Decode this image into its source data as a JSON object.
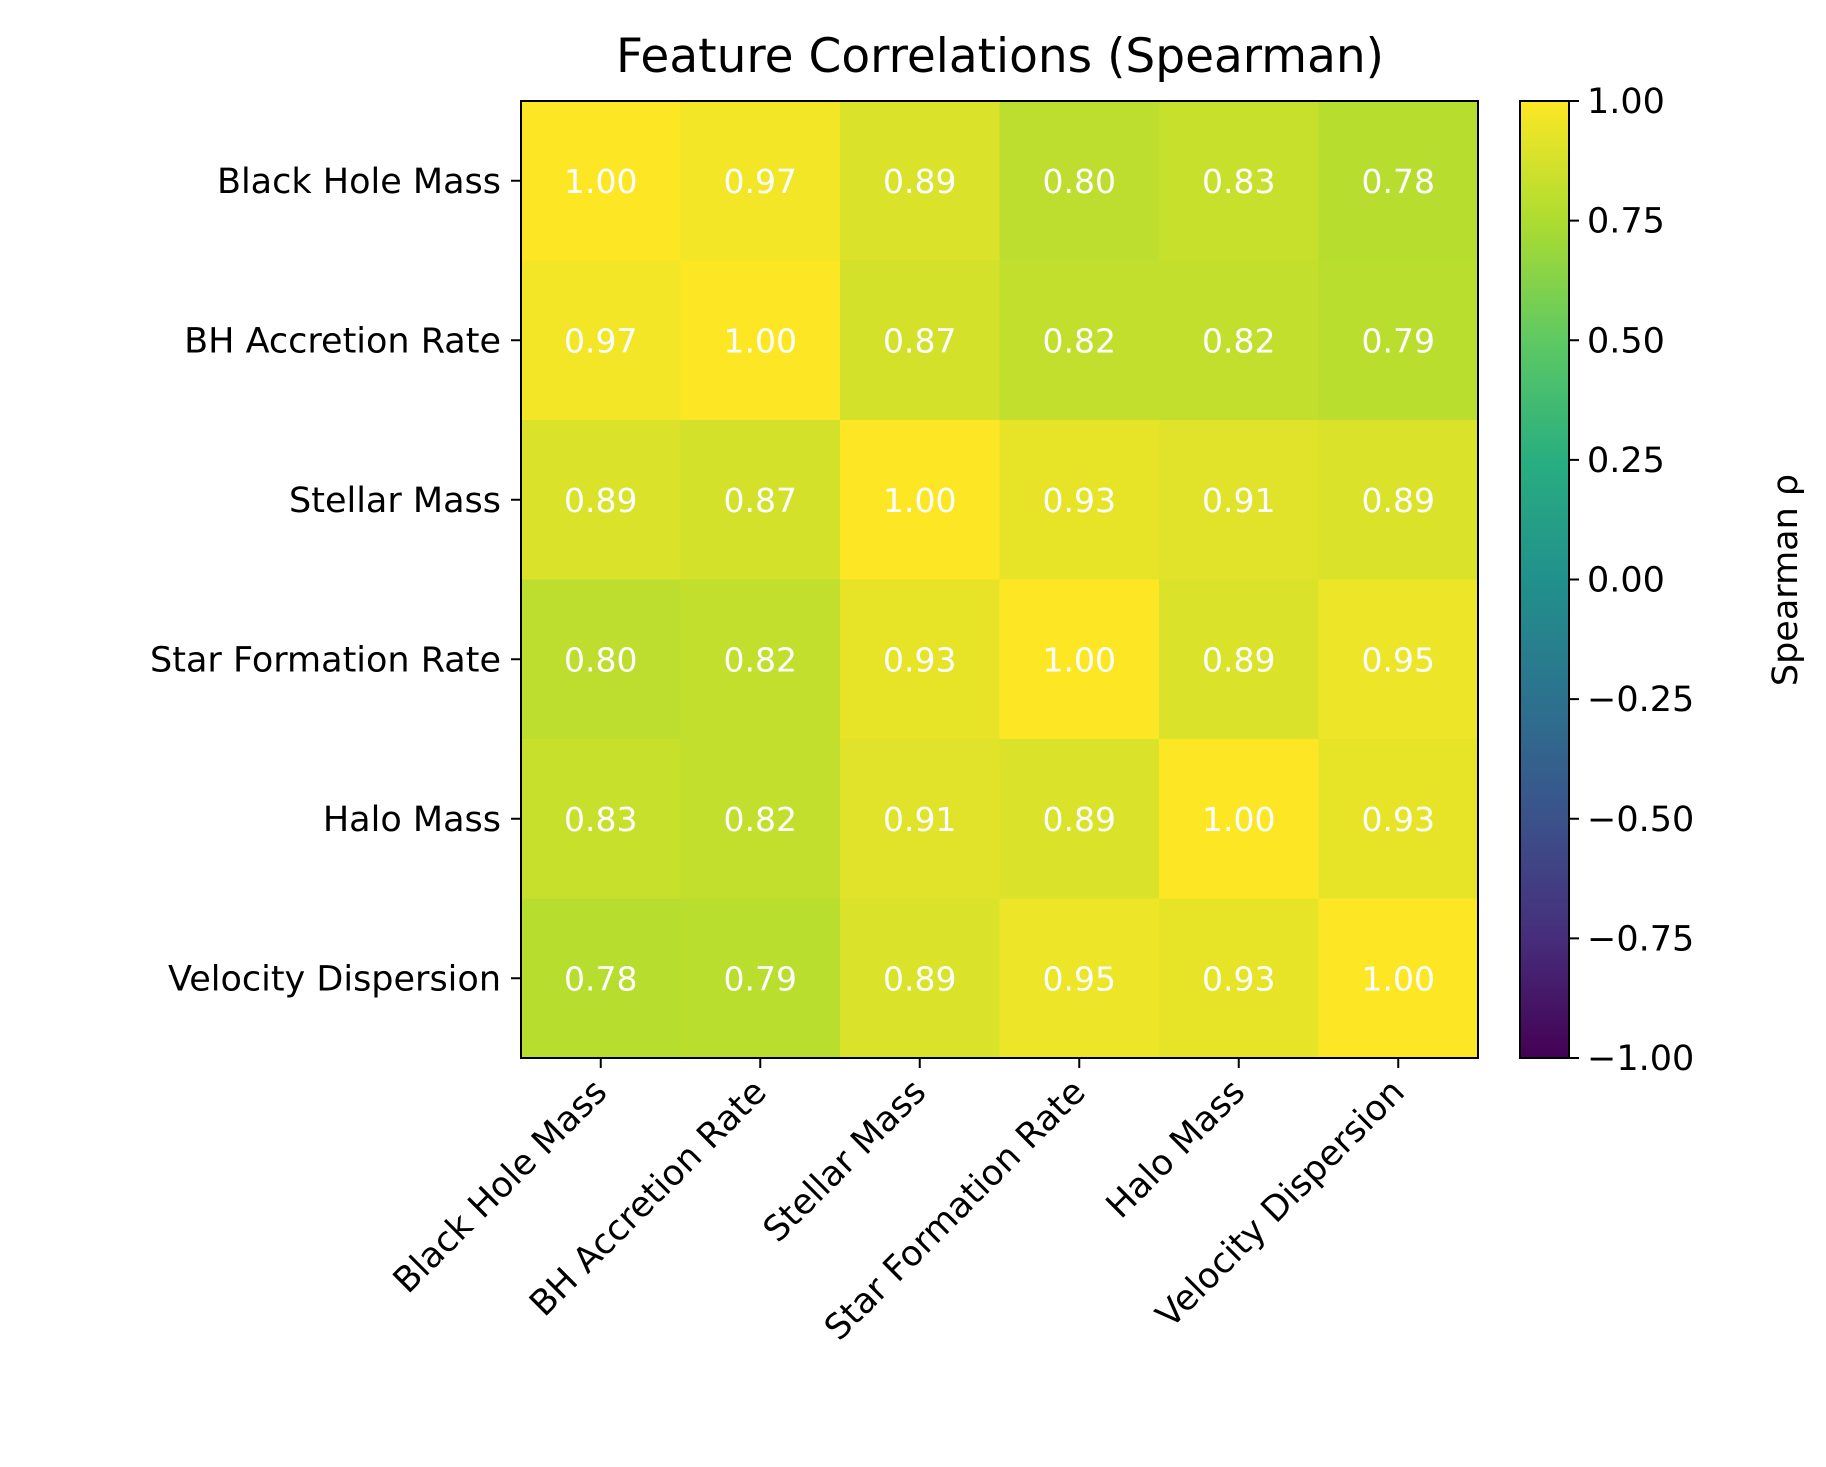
{
  "chart_data": {
    "type": "heatmap",
    "title": "Feature Correlations (Spearman)",
    "row_labels": [
      "Black Hole Mass",
      "BH Accretion Rate",
      "Stellar Mass",
      "Star Formation Rate",
      "Halo Mass",
      "Velocity Dispersion"
    ],
    "col_labels": [
      "Black Hole Mass",
      "BH Accretion Rate",
      "Stellar Mass",
      "Star Formation Rate",
      "Halo Mass",
      "Velocity Dispersion"
    ],
    "values": [
      [
        1.0,
        0.97,
        0.89,
        0.8,
        0.83,
        0.78
      ],
      [
        0.97,
        1.0,
        0.87,
        0.82,
        0.82,
        0.79
      ],
      [
        0.89,
        0.87,
        1.0,
        0.93,
        0.91,
        0.89
      ],
      [
        0.8,
        0.82,
        0.93,
        1.0,
        0.89,
        0.95
      ],
      [
        0.83,
        0.82,
        0.91,
        0.89,
        1.0,
        0.93
      ],
      [
        0.78,
        0.79,
        0.89,
        0.95,
        0.93,
        1.0
      ]
    ],
    "value_format": "0.00",
    "colormap": "viridis",
    "vmin": -1.0,
    "vmax": 1.0,
    "colorbar": {
      "label": "Spearman ρ",
      "ticks": [
        1.0,
        0.75,
        0.5,
        0.25,
        0.0,
        -0.25,
        -0.5,
        -0.75,
        -1.0
      ],
      "tick_labels": [
        "1.00",
        "0.75",
        "0.50",
        "0.25",
        "0.00",
        "−0.25",
        "−0.50",
        "−0.75",
        "−1.00"
      ]
    },
    "x_tick_rotation": 45,
    "grid": false
  }
}
